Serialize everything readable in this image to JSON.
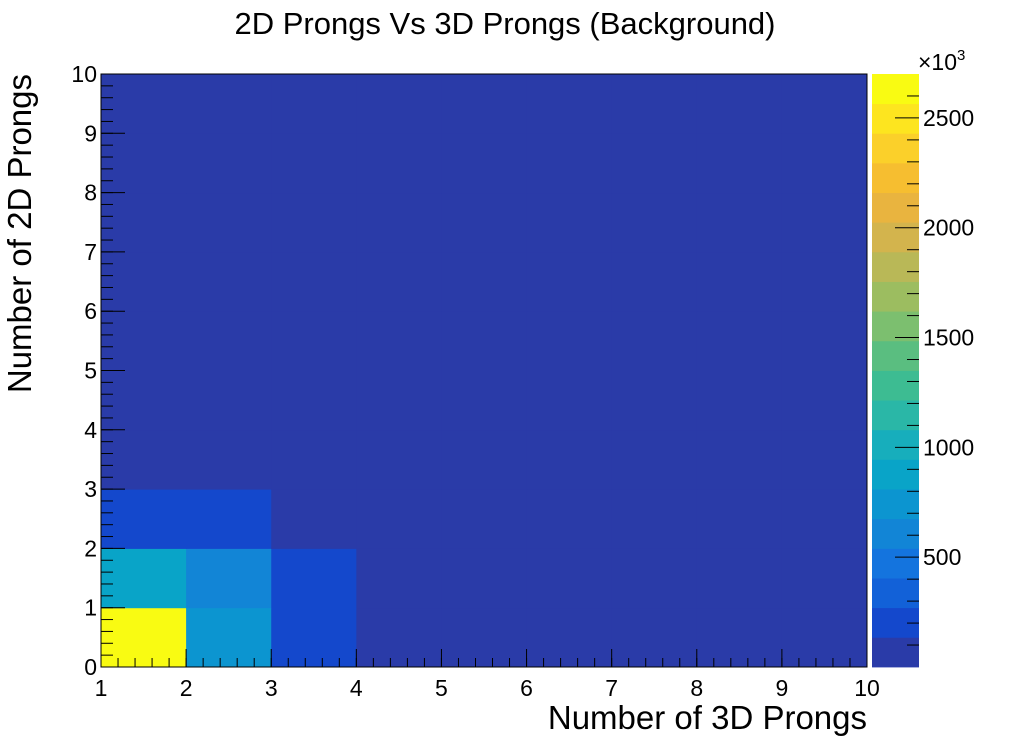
{
  "chart_data": {
    "type": "heatmap",
    "title": "2D Prongs Vs 3D Prongs (Background)",
    "xlabel": "Number of 3D Prongs",
    "ylabel": "Number of 2D Prongs",
    "xlim": [
      1,
      10
    ],
    "ylim": [
      0,
      10
    ],
    "x_ticks": [
      "1",
      "2",
      "3",
      "4",
      "5",
      "6",
      "7",
      "8",
      "9",
      "10"
    ],
    "y_ticks": [
      "0",
      "1",
      "2",
      "3",
      "4",
      "5",
      "6",
      "7",
      "8",
      "9",
      "10"
    ],
    "x_bins": [
      [
        1,
        2
      ],
      [
        2,
        3
      ],
      [
        3,
        4
      ],
      [
        4,
        5
      ],
      [
        5,
        6
      ],
      [
        6,
        7
      ],
      [
        7,
        8
      ],
      [
        8,
        9
      ],
      [
        9,
        10
      ]
    ],
    "y_bins": [
      [
        0,
        1
      ],
      [
        1,
        2
      ],
      [
        2,
        3
      ],
      [
        3,
        4
      ],
      [
        4,
        5
      ],
      [
        5,
        6
      ],
      [
        6,
        7
      ],
      [
        7,
        8
      ],
      [
        8,
        9
      ],
      [
        9,
        10
      ]
    ],
    "cells": [
      {
        "x": [
          1,
          2
        ],
        "y": [
          0,
          1
        ],
        "value": 2650000
      },
      {
        "x": [
          2,
          3
        ],
        "y": [
          0,
          1
        ],
        "value": 750000
      },
      {
        "x": [
          3,
          4
        ],
        "y": [
          0,
          1
        ],
        "value": 250000
      },
      {
        "x": [
          1,
          2
        ],
        "y": [
          1,
          2
        ],
        "value": 930000
      },
      {
        "x": [
          2,
          3
        ],
        "y": [
          1,
          2
        ],
        "value": 600000
      },
      {
        "x": [
          3,
          4
        ],
        "y": [
          1,
          2
        ],
        "value": 250000
      },
      {
        "x": [
          1,
          2
        ],
        "y": [
          2,
          3
        ],
        "value": 250000
      },
      {
        "x": [
          2,
          3
        ],
        "y": [
          2,
          3
        ],
        "value": 250000
      }
    ],
    "background_value": 30000,
    "colorbar": {
      "min": 0,
      "max": 2700000,
      "multiplier_label": "×10",
      "multiplier_exp": "3",
      "ticks": [
        {
          "value": 500000,
          "label": "500"
        },
        {
          "value": 1000000,
          "label": "1000"
        },
        {
          "value": 1500000,
          "label": "1500"
        },
        {
          "value": 2000000,
          "label": "2000"
        },
        {
          "value": 2500000,
          "label": "2500"
        }
      ],
      "colors": [
        "#2a3ba8",
        "#1448cc",
        "#1261d8",
        "#1474de",
        "#1285d6",
        "#0c95d0",
        "#09a4c8",
        "#17aebc",
        "#2ab7a7",
        "#3dbc92",
        "#5abe80",
        "#7cbf6f",
        "#9cbd60",
        "#b9b857",
        "#d3b44d",
        "#e9b43f",
        "#f6be30",
        "#fbd02a",
        "#fde51f",
        "#f9fb12"
      ]
    }
  }
}
